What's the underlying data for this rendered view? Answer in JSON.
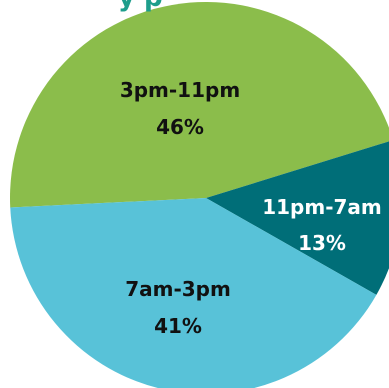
{
  "chart_data": {
    "type": "pie",
    "title_fragment": "y p",
    "slices": [
      {
        "label": "3pm-11pm",
        "value": 46,
        "value_label": "46%",
        "color": "#8bbd4b"
      },
      {
        "label": "11pm-7am",
        "value": 13,
        "value_label": "13%",
        "color": "#006e78"
      },
      {
        "label": "7am-3pm",
        "value": 41,
        "value_label": "41%",
        "color": "#58c2d8"
      }
    ]
  }
}
